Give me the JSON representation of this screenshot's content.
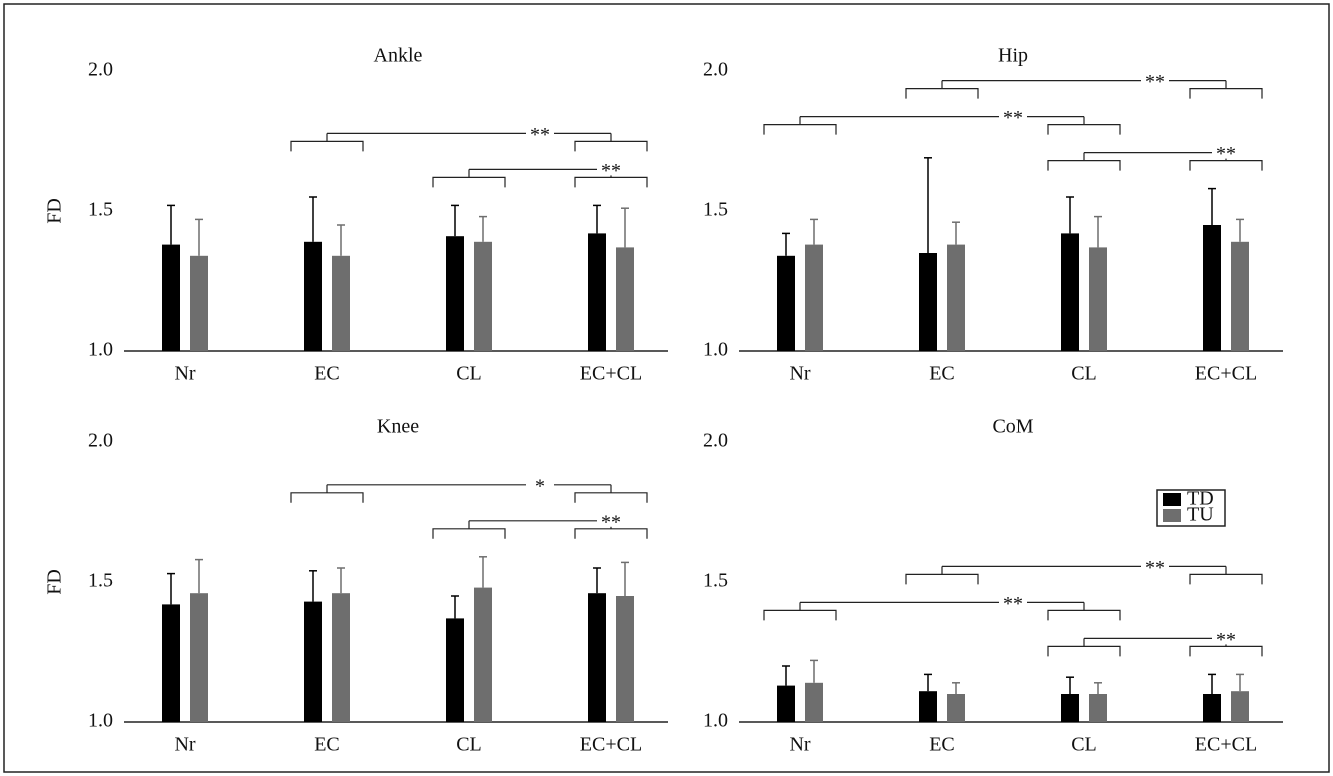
{
  "chart_data": [
    {
      "type": "bar",
      "title": "Ankle",
      "ylabel": "FD",
      "categories": [
        "Nr",
        "EC",
        "CL",
        "EC+CL"
      ],
      "series": [
        {
          "color": "#000000",
          "values": [
            1.38,
            1.39,
            1.41,
            1.42
          ],
          "errors": [
            0.14,
            0.16,
            0.11,
            0.1
          ]
        },
        {
          "color": "#6e6e6e",
          "values": [
            1.34,
            1.34,
            1.39,
            1.37
          ],
          "errors": [
            0.13,
            0.11,
            0.09,
            0.14
          ]
        }
      ],
      "ylim": [
        1.0,
        2.0
      ],
      "yticks": [
        {
          "value": 1.0,
          "label": "1.0"
        },
        1.5,
        {
          "value": 2.0,
          "label": "2.0"
        }
      ],
      "annotations": [
        {
          "from": 1,
          "to": 3,
          "label": "**"
        },
        {
          "from": 2,
          "to": 3,
          "label": "**"
        }
      ]
    },
    {
      "type": "bar",
      "title": "Hip",
      "categories": [
        "Nr",
        "EC",
        "CL",
        "EC+CL"
      ],
      "series": [
        {
          "color": "#000000",
          "values": [
            1.34,
            1.35,
            1.42,
            1.45
          ],
          "errors": [
            0.08,
            0.34,
            0.13,
            0.13
          ]
        },
        {
          "color": "#6e6e6e",
          "values": [
            1.38,
            1.38,
            1.37,
            1.39
          ],
          "errors": [
            0.09,
            0.08,
            0.11,
            0.08
          ]
        }
      ],
      "ylim": [
        1.0,
        2.0
      ],
      "yticks": [
        {
          "value": 1.0,
          "label": "1.0"
        },
        1.5,
        {
          "value": 2.0,
          "label": "2.0"
        }
      ],
      "annotations": [
        {
          "from": 1,
          "to": 3,
          "label": "**"
        },
        {
          "from": 0,
          "to": 2,
          "label": "**"
        },
        {
          "from": 2,
          "to": 3,
          "label": "**"
        }
      ]
    },
    {
      "type": "bar",
      "title": "Knee",
      "ylabel": "FD",
      "categories": [
        "Nr",
        "EC",
        "CL",
        "EC+CL"
      ],
      "series": [
        {
          "color": "#000000",
          "values": [
            1.42,
            1.43,
            1.37,
            1.46
          ],
          "errors": [
            0.11,
            0.11,
            0.08,
            0.09
          ]
        },
        {
          "color": "#6e6e6e",
          "values": [
            1.46,
            1.46,
            1.48,
            1.45
          ],
          "errors": [
            0.12,
            0.09,
            0.11,
            0.12
          ]
        }
      ],
      "ylim": [
        1.0,
        2.0
      ],
      "yticks": [
        {
          "value": 1.0,
          "label": "1.0"
        },
        1.5,
        {
          "value": 2.0,
          "label": "2.0"
        }
      ],
      "annotations": [
        {
          "from": 1,
          "to": 3,
          "label": "*"
        },
        {
          "from": 2,
          "to": 3,
          "label": "**"
        }
      ]
    },
    {
      "type": "bar",
      "title": "CoM",
      "categories": [
        "Nr",
        "EC",
        "CL",
        "EC+CL"
      ],
      "series": [
        {
          "name": "TD",
          "color": "#000000",
          "values": [
            1.13,
            1.11,
            1.1,
            1.1
          ],
          "errors": [
            0.07,
            0.06,
            0.06,
            0.07
          ]
        },
        {
          "name": "TU",
          "color": "#6e6e6e",
          "values": [
            1.14,
            1.1,
            1.1,
            1.11
          ],
          "errors": [
            0.08,
            0.04,
            0.04,
            0.06
          ]
        }
      ],
      "ylim": [
        1.0,
        2.0
      ],
      "yticks": [
        {
          "value": 1.0,
          "label": "1.0"
        },
        1.5,
        {
          "value": 2.0,
          "label": "2.0"
        }
      ],
      "legend": "upper right",
      "annotations": [
        {
          "from": 1,
          "to": 3,
          "label": "**"
        },
        {
          "from": 0,
          "to": 2,
          "label": "**"
        },
        {
          "from": 2,
          "to": 3,
          "label": "**"
        }
      ]
    }
  ]
}
